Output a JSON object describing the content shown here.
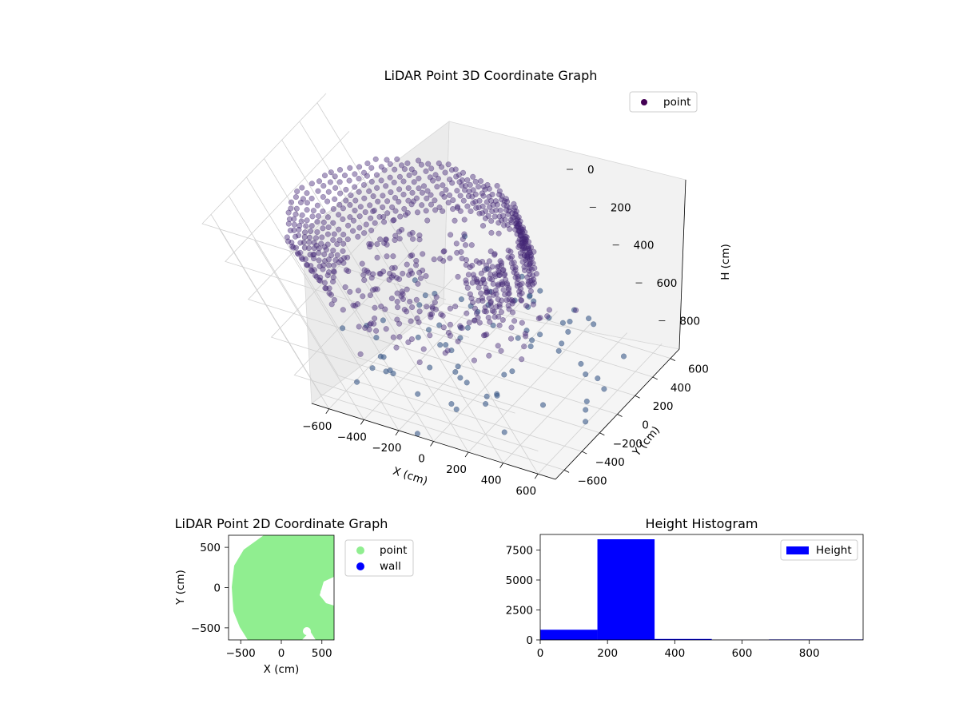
{
  "chart_data": [
    {
      "type": "scatter",
      "projection": "3d",
      "title": "LiDAR Point 3D Coordinate Graph",
      "xlabel": "X (cm)",
      "ylabel": "Y (cm)",
      "zlabel": "H (cm)",
      "xlim": [
        -700,
        700
      ],
      "ylim": [
        -700,
        700
      ],
      "zlim": [
        0,
        950
      ],
      "z_inverted": true,
      "xticks": [
        "−600",
        "−400",
        "−200",
        "0",
        "200",
        "400",
        "600"
      ],
      "yticks": [
        "−600",
        "−400",
        "−200",
        "0",
        "200",
        "400",
        "600"
      ],
      "zticks": [
        "0",
        "200",
        "400",
        "600",
        "800"
      ],
      "legend": {
        "position": "top-right",
        "entries": [
          "point"
        ]
      },
      "series": [
        {
          "name": "point",
          "color": "#440154",
          "description_shape": "dense ring of points at radius ~600 cm near H 200–400, with scattered points descending toward H 900"
        }
      ],
      "grid": true
    },
    {
      "type": "scatter",
      "title": "LiDAR Point 2D Coordinate Graph",
      "xlabel": "X (cm)",
      "ylabel": "Y (cm)",
      "xlim": [
        -650,
        650
      ],
      "ylim": [
        -650,
        650
      ],
      "xticks": [
        "−500",
        "0",
        "500"
      ],
      "yticks": [
        "−500",
        "0",
        "500"
      ],
      "legend": {
        "position": "outside-right",
        "entries": [
          "point",
          "wall"
        ]
      },
      "series": [
        {
          "name": "point",
          "color": "#90ee90"
        },
        {
          "name": "wall",
          "color": "#0000ff"
        }
      ]
    },
    {
      "type": "bar",
      "title": "Height Histogram",
      "bin_edges": [
        0,
        170,
        340,
        510,
        680,
        850,
        960
      ],
      "values": [
        850,
        8400,
        80,
        10,
        40,
        40
      ],
      "xlim": [
        0,
        960
      ],
      "ylim": [
        0,
        8800
      ],
      "xticks": [
        "0",
        "200",
        "400",
        "600",
        "800"
      ],
      "yticks": [
        "0",
        "2500",
        "5000",
        "7500"
      ],
      "legend": {
        "position": "top-right",
        "entries": [
          "Height"
        ]
      },
      "series": [
        {
          "name": "Height",
          "color": "#0000ff"
        }
      ]
    }
  ]
}
